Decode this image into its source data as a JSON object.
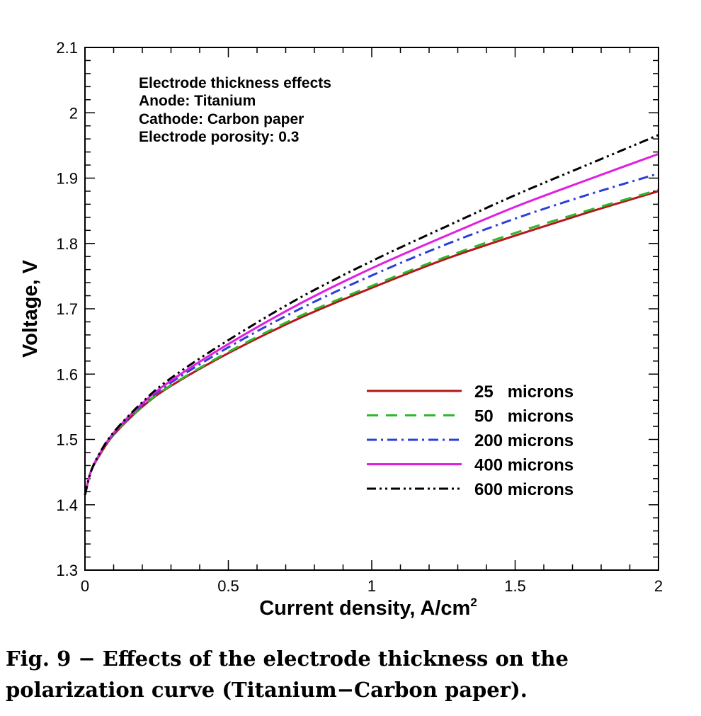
{
  "chart_data": {
    "type": "line",
    "xlabel": "Current density, A/cm",
    "xlabel_sup": "2",
    "ylabel": "Voltage, V",
    "xlim": [
      0,
      2
    ],
    "ylim": [
      1.3,
      2.1
    ],
    "x_ticks": [
      "0",
      "0.5",
      "1",
      "1.5",
      "2"
    ],
    "y_ticks": [
      "1.3",
      "1.4",
      "1.5",
      "1.6",
      "1.7",
      "1.8",
      "1.9",
      "2",
      "2.1"
    ],
    "annotations": [
      "Electrode thickness effects",
      "Anode: Titanium",
      "Cathode: Carbon paper",
      "Electrode porosity: 0.3"
    ],
    "legend_position": "lower-right",
    "x": [
      0,
      0.02,
      0.05,
      0.1,
      0.2,
      0.3,
      0.5,
      0.75,
      1.0,
      1.25,
      1.5,
      1.75,
      2.0
    ],
    "series": [
      {
        "name": "25   microns",
        "color": "#b5161b",
        "style": "solid",
        "values": [
          1.415,
          1.45,
          1.475,
          1.507,
          1.55,
          1.582,
          1.632,
          1.686,
          1.732,
          1.775,
          1.812,
          1.847,
          1.88
        ]
      },
      {
        "name": "50   microns",
        "color": "#2eb82e",
        "style": "dashed",
        "values": [
          1.415,
          1.45,
          1.476,
          1.508,
          1.551,
          1.583,
          1.634,
          1.689,
          1.735,
          1.778,
          1.816,
          1.85,
          1.882
        ]
      },
      {
        "name": "200 microns",
        "color": "#2b3fd6",
        "style": "dashdot",
        "values": [
          1.415,
          1.45,
          1.477,
          1.509,
          1.553,
          1.587,
          1.641,
          1.7,
          1.751,
          1.797,
          1.838,
          1.874,
          1.907
        ]
      },
      {
        "name": "400 microns",
        "color": "#e020e0",
        "style": "solid",
        "values": [
          1.415,
          1.45,
          1.477,
          1.51,
          1.555,
          1.59,
          1.646,
          1.708,
          1.762,
          1.81,
          1.856,
          1.897,
          1.937
        ]
      },
      {
        "name": "600 microns",
        "color": "#000000",
        "style": "dashdotdot",
        "values": [
          1.415,
          1.45,
          1.478,
          1.511,
          1.557,
          1.594,
          1.652,
          1.717,
          1.773,
          1.824,
          1.874,
          1.92,
          1.966
        ]
      }
    ]
  },
  "caption": {
    "line1": "Fig. 9 − Effects of the electrode thickness on the",
    "line2": "polarization curve (Titanium−Carbon paper)."
  }
}
